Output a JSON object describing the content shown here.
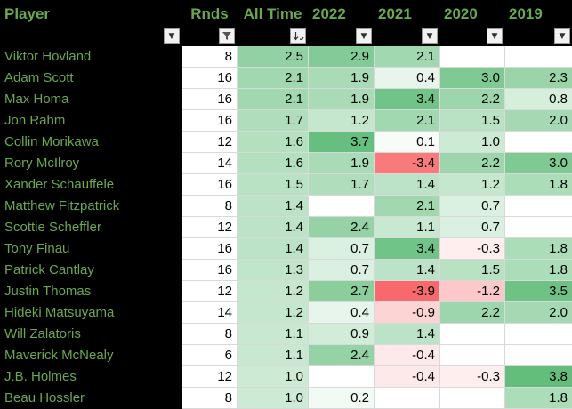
{
  "columns": {
    "player": "Player",
    "rnds": "Rnds",
    "all_time": "All Time",
    "y2022": "2022",
    "y2021": "2021",
    "y2020": "2020",
    "y2019": "2019"
  },
  "filter_states": {
    "player": "dropdown",
    "rnds": "filtered",
    "all_time": "sorted-descending",
    "y2022": "dropdown",
    "y2021": "dropdown",
    "y2020": "dropdown",
    "y2019": "dropdown"
  },
  "rows": [
    {
      "player": "Viktor Hovland",
      "rnds": "8",
      "all_time": "2.5",
      "y2022": "2.9",
      "y2021": "2.1",
      "y2020": "",
      "y2019": ""
    },
    {
      "player": "Adam Scott",
      "rnds": "16",
      "all_time": "2.1",
      "y2022": "1.9",
      "y2021": "0.4",
      "y2020": "3.0",
      "y2019": "2.3"
    },
    {
      "player": "Max Homa",
      "rnds": "16",
      "all_time": "2.1",
      "y2022": "1.9",
      "y2021": "3.4",
      "y2020": "2.2",
      "y2019": "0.8"
    },
    {
      "player": "Jon Rahm",
      "rnds": "16",
      "all_time": "1.7",
      "y2022": "1.2",
      "y2021": "2.1",
      "y2020": "1.5",
      "y2019": "2.0"
    },
    {
      "player": "Collin Morikawa",
      "rnds": "12",
      "all_time": "1.6",
      "y2022": "3.7",
      "y2021": "0.1",
      "y2020": "1.0",
      "y2019": ""
    },
    {
      "player": "Rory McIlroy",
      "rnds": "14",
      "all_time": "1.6",
      "y2022": "1.9",
      "y2021": "-3.4",
      "y2020": "2.2",
      "y2019": "3.0"
    },
    {
      "player": "Xander Schauffele",
      "rnds": "16",
      "all_time": "1.5",
      "y2022": "1.7",
      "y2021": "1.4",
      "y2020": "1.2",
      "y2019": "1.8"
    },
    {
      "player": "Matthew Fitzpatrick",
      "rnds": "8",
      "all_time": "1.4",
      "y2022": "",
      "y2021": "2.1",
      "y2020": "0.7",
      "y2019": ""
    },
    {
      "player": "Scottie Scheffler",
      "rnds": "12",
      "all_time": "1.4",
      "y2022": "2.4",
      "y2021": "1.1",
      "y2020": "0.7",
      "y2019": ""
    },
    {
      "player": "Tony Finau",
      "rnds": "16",
      "all_time": "1.4",
      "y2022": "0.7",
      "y2021": "3.4",
      "y2020": "-0.3",
      "y2019": "1.8"
    },
    {
      "player": "Patrick Cantlay",
      "rnds": "16",
      "all_time": "1.3",
      "y2022": "0.7",
      "y2021": "1.4",
      "y2020": "1.5",
      "y2019": "1.8"
    },
    {
      "player": "Justin Thomas",
      "rnds": "12",
      "all_time": "1.2",
      "y2022": "2.7",
      "y2021": "-3.9",
      "y2020": "-1.2",
      "y2019": "3.5"
    },
    {
      "player": "Hideki Matsuyama",
      "rnds": "14",
      "all_time": "1.2",
      "y2022": "0.4",
      "y2021": "-0.9",
      "y2020": "2.2",
      "y2019": "2.0"
    },
    {
      "player": "Will Zalatoris",
      "rnds": "8",
      "all_time": "1.1",
      "y2022": "0.9",
      "y2021": "1.4",
      "y2020": "",
      "y2019": ""
    },
    {
      "player": "Maverick McNealy",
      "rnds": "6",
      "all_time": "1.1",
      "y2022": "2.4",
      "y2021": "-0.4",
      "y2020": "",
      "y2019": ""
    },
    {
      "player": "J.B. Holmes",
      "rnds": "12",
      "all_time": "1.0",
      "y2022": "",
      "y2021": "-0.4",
      "y2020": "-0.3",
      "y2019": "3.8"
    },
    {
      "player": "Beau Hossler",
      "rnds": "8",
      "all_time": "1.0",
      "y2022": "0.2",
      "y2021": "",
      "y2020": "",
      "y2019": "1.8"
    }
  ],
  "colors": {
    "background": "#000000",
    "header_text": "#6aa84f",
    "cell_neutral": "#ffffff",
    "scale_high": "#63be7b",
    "scale_low": "#f8696b"
  },
  "color_scale_range": {
    "min": -3.9,
    "max": 3.8
  }
}
